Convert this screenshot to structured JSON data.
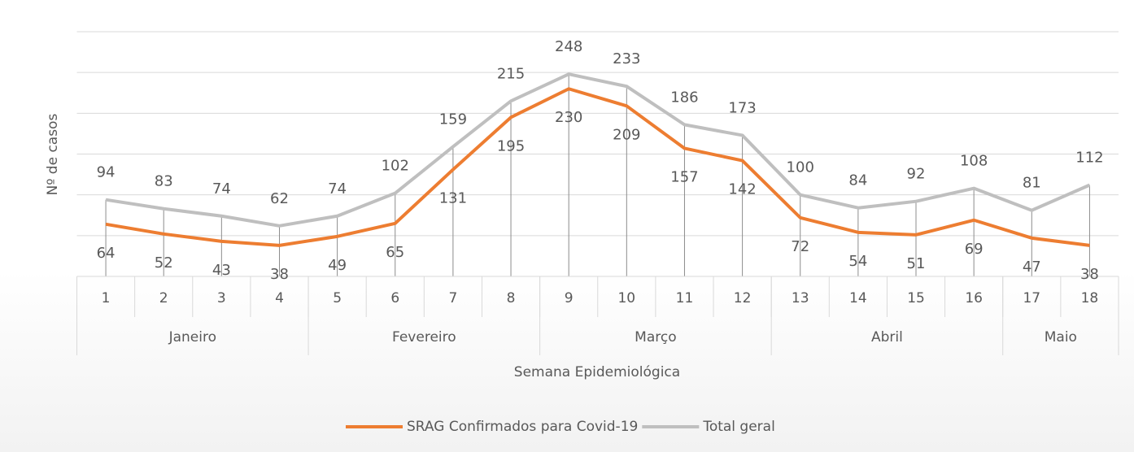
{
  "chart_data": {
    "type": "line",
    "y_label": "Nº de casos",
    "x_label": "Semana Epidemiológica",
    "categories": [
      "1",
      "2",
      "3",
      "4",
      "5",
      "6",
      "7",
      "8",
      "9",
      "10",
      "11",
      "12",
      "13",
      "14",
      "15",
      "16",
      "17",
      "18"
    ],
    "x_groups": [
      {
        "label": "Janeiro",
        "count": 4
      },
      {
        "label": "Fevereiro",
        "count": 4
      },
      {
        "label": "Março",
        "count": 4
      },
      {
        "label": "Abril",
        "count": 4
      },
      {
        "label": "Maio",
        "count": 2
      }
    ],
    "series": [
      {
        "name": "SRAG Confirmados para Covid-19",
        "color": "#ed7d31",
        "label_position": "below",
        "values": [
          64,
          52,
          43,
          38,
          49,
          65,
          131,
          195,
          230,
          209,
          157,
          142,
          72,
          54,
          51,
          69,
          47,
          38
        ]
      },
      {
        "name": "Total geral",
        "color": "#bfbfbf",
        "label_position": "above",
        "values": [
          94,
          83,
          74,
          62,
          74,
          102,
          159,
          215,
          248,
          233,
          186,
          173,
          100,
          84,
          92,
          108,
          81,
          112
        ]
      }
    ],
    "ylim": [
      0,
      300
    ],
    "yticks": [
      0,
      50,
      100,
      150,
      200,
      250,
      300
    ],
    "grid": true,
    "legend": "bottom"
  }
}
